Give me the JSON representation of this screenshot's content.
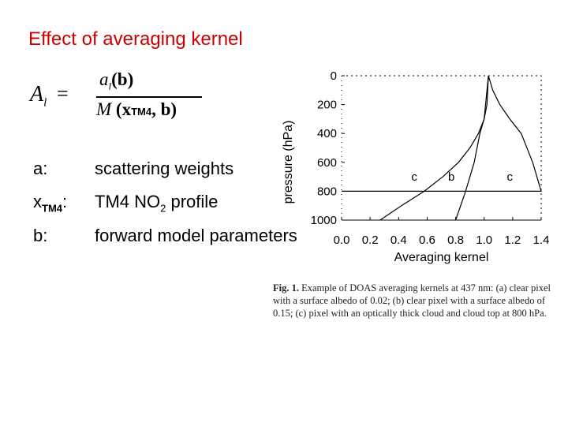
{
  "slide": {
    "title": "Effect of averaging kernel",
    "formula": {
      "lhs": "A",
      "lhs_sub": "l",
      "eq": "=",
      "num_a": "a",
      "num_sub": "l",
      "num_arg": "(b)",
      "den_m": "M",
      "den_open": "(x",
      "den_sub": "TM4",
      "den_rest": ", b)"
    },
    "definitions": [
      {
        "symbol": "a:",
        "text": "scattering weights"
      },
      {
        "symbol": "x",
        "symbol_sub": "TM4",
        "symbol_suffix": ":",
        "text_main": "TM4 NO",
        "text_sub": "2",
        "text_tail": " profile"
      },
      {
        "symbol": "b:",
        "text": "forward model parameters"
      }
    ],
    "caption": {
      "label": "Fig. 1.",
      "text": "Example of DOAS averaging kernels at 437 nm: (a) clear pixel with a surface albedo of 0.02; (b) clear pixel with a surface albedo of 0.15; (c) pixel with an optically thick cloud and cloud top at 800 hPa."
    }
  },
  "chart_data": {
    "type": "line",
    "xlabel": "Averaging kernel",
    "ylabel": "pressure (hPa)",
    "xlim": [
      0.0,
      1.4
    ],
    "ylim": [
      1000,
      0
    ],
    "y_inverted": true,
    "xticks": [
      0.0,
      0.2,
      0.4,
      0.6,
      0.8,
      1.0,
      1.2,
      1.4
    ],
    "xtick_labels": [
      "0.0",
      "0.2",
      "0.4",
      "0.6",
      "0.8",
      "1.0",
      "1.2",
      "1.4"
    ],
    "yticks": [
      0,
      200,
      400,
      600,
      800,
      1000
    ],
    "ytick_labels": [
      "0",
      "200",
      "400",
      "600",
      "800",
      "1000"
    ],
    "grid": false,
    "series": [
      {
        "name": "a",
        "x": [
          0.27,
          0.42,
          0.58,
          0.71,
          0.82,
          0.9,
          0.96,
          1.0,
          1.02,
          1.03
        ],
        "y": [
          1000,
          900,
          800,
          700,
          600,
          500,
          400,
          300,
          200,
          0
        ]
      },
      {
        "name": "b",
        "x": [
          0.8,
          0.87,
          0.93,
          0.97,
          1.0,
          1.01,
          1.02,
          1.03
        ],
        "y": [
          1000,
          800,
          600,
          400,
          300,
          200,
          100,
          0
        ]
      },
      {
        "name": "c",
        "x": [
          0.0,
          0.0,
          1.41,
          1.34,
          1.26,
          1.18,
          1.11,
          1.06,
          1.03
        ],
        "y": [
          800,
          800,
          800,
          600,
          400,
          300,
          200,
          100,
          0
        ]
      }
    ],
    "curve_labels": [
      {
        "text": "c",
        "x": 0.51,
        "y": 700
      },
      {
        "text": "b",
        "x": 0.77,
        "y": 700
      },
      {
        "text": "c",
        "x": 1.18,
        "y": 700
      }
    ]
  }
}
